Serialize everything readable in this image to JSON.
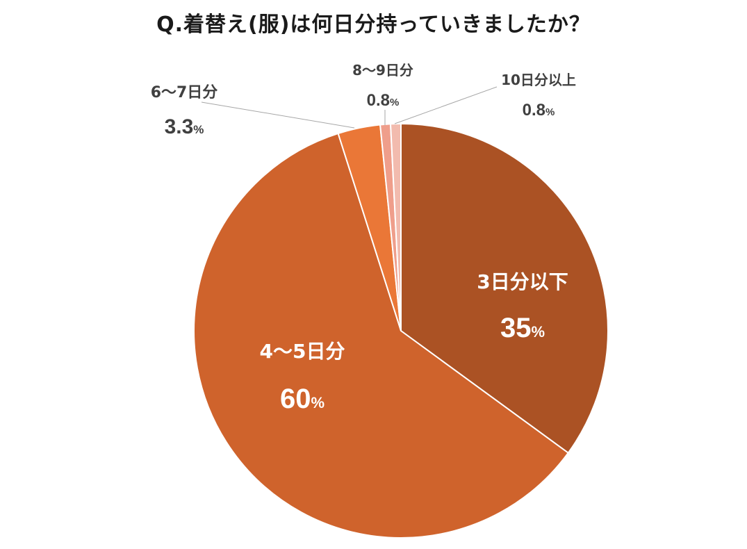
{
  "chart_data": {
    "type": "pie",
    "title": "Q.着替え(服)は何日分持っていきましたか？",
    "unit": "%",
    "slices": [
      {
        "label": "3日分以下",
        "value": 35,
        "value_text": "35",
        "color": "#ab5224"
      },
      {
        "label": "4〜5日分",
        "value": 60,
        "value_text": "60",
        "color": "#cf632c"
      },
      {
        "label": "6〜7日分",
        "value": 3.3,
        "value_text": "3.3",
        "color": "#ea7737"
      },
      {
        "label": "8〜9日分",
        "value": 0.8,
        "value_text": "0.8",
        "color": "#ef9e8b"
      },
      {
        "label": "10日分以上",
        "value": 0.8,
        "value_text": "0.8",
        "color": "#f2bbae"
      }
    ]
  }
}
